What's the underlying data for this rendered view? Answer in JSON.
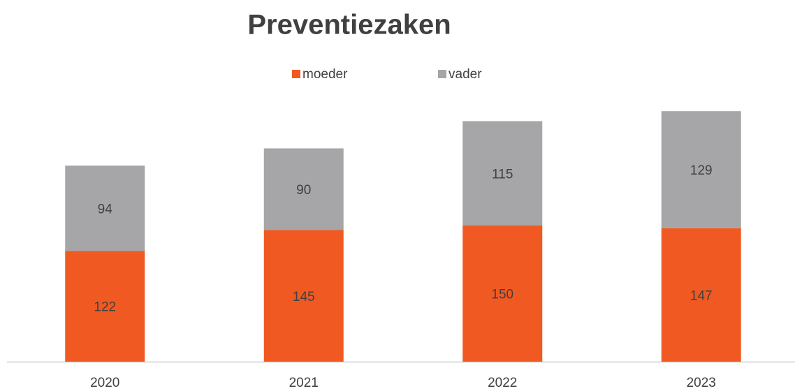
{
  "chart_data": {
    "type": "stacked_bar",
    "title": "Preventiezaken",
    "categories": [
      "2020",
      "2021",
      "2022",
      "2023"
    ],
    "series": [
      {
        "name": "moeder",
        "color": "#f05a22",
        "values": [
          122,
          145,
          150,
          147
        ]
      },
      {
        "name": "vader",
        "color": "#a6a6a8",
        "values": [
          94,
          90,
          115,
          129
        ]
      }
    ],
    "legend": "top"
  }
}
